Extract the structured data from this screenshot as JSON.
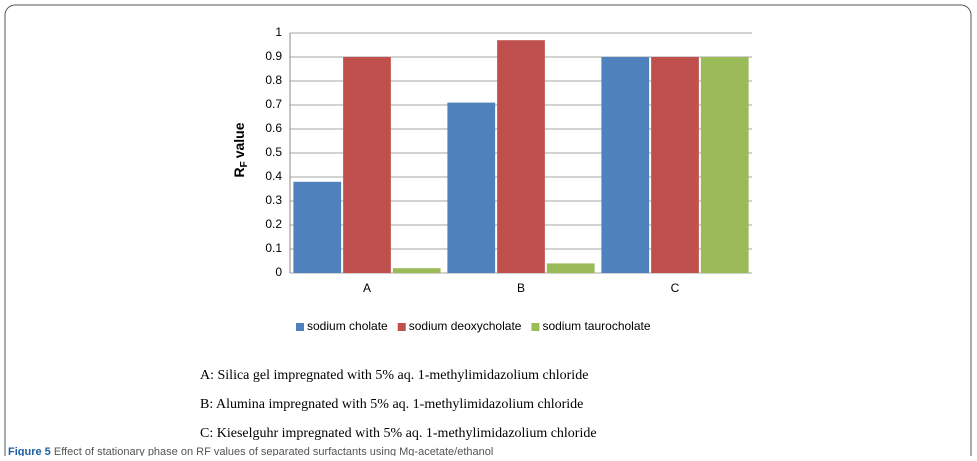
{
  "chart_data": {
    "type": "bar",
    "y_label": {
      "main": "R",
      "sub": "F",
      "rest": "value"
    },
    "categories": [
      "A",
      "B",
      "C"
    ],
    "series": [
      {
        "name": "sodium cholate",
        "color": "#4f81bd",
        "values": [
          0.38,
          0.71,
          0.9
        ]
      },
      {
        "name": "sodium deoxycholate",
        "color": "#c0504d",
        "values": [
          0.9,
          0.97,
          0.9
        ]
      },
      {
        "name": "sodium taurocholate",
        "color": "#9bbb59",
        "values": [
          0.02,
          0.04,
          0.9
        ]
      }
    ],
    "ylim": [
      0,
      1
    ],
    "yticks": [
      0,
      0.1,
      0.2,
      0.3,
      0.4,
      0.5,
      0.6,
      0.7,
      0.8,
      0.9,
      1
    ],
    "grid": true,
    "legend": "bottom"
  },
  "notes": [
    "A: Silica gel impregnated with 5% aq. 1-methylimidazolium chloride",
    "B: Alumina impregnated with 5% aq. 1-methylimidazolium chloride",
    "C: Kieselguhr impregnated with 5% aq. 1-methylimidazolium chloride"
  ],
  "caption": {
    "label": "Figure 5",
    "text": "Effect of stationary phase on RF values of separated surfactants using Mg-acetate/ethanol"
  }
}
